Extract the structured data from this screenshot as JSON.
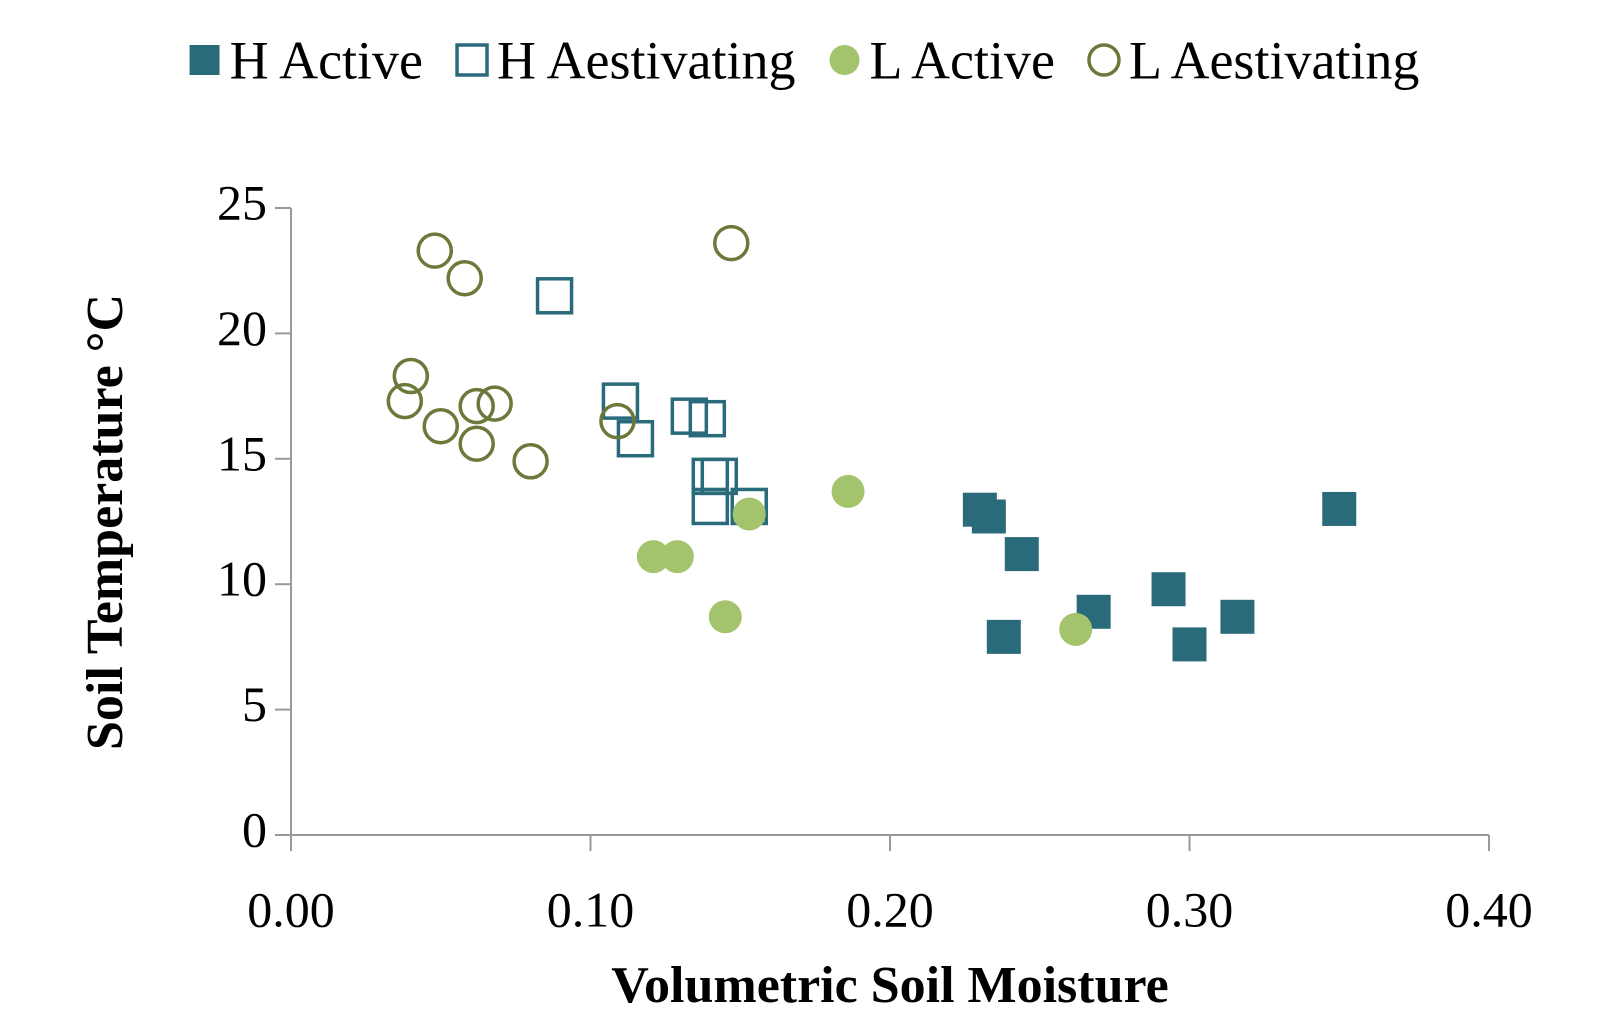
{
  "chart_data": {
    "type": "scatter",
    "xlabel": "Volumetric Soil Moisture",
    "ylabel": "Soil Temperature °C",
    "xlim": [
      0,
      0.4
    ],
    "xticks": [
      {
        "value": 0,
        "label": "0.00"
      },
      {
        "value": 0.1,
        "label": "0.10"
      },
      {
        "value": 0.2,
        "label": "0.20"
      },
      {
        "value": 0.3,
        "label": "0.30"
      },
      {
        "value": 0.4,
        "label": "0.40"
      }
    ],
    "ylim": [
      0,
      25
    ],
    "yticks": [
      0,
      5,
      10,
      15,
      20,
      25
    ],
    "grid": false,
    "legend": "top",
    "series": [
      {
        "name": "H Active",
        "color": "#2a6b7b",
        "marker": "square",
        "filled": true,
        "x": [
          0.23,
          0.233,
          0.244,
          0.238,
          0.268,
          0.293,
          0.3,
          0.316,
          0.35
        ],
        "values": [
          12.97,
          12.7,
          11.2,
          7.9,
          8.9,
          9.8,
          7.6,
          8.7,
          13.0
        ]
      },
      {
        "name": "H Aestivating",
        "color": "#2a6b7b",
        "marker": "square",
        "filled": false,
        "x": [
          0.088,
          0.11,
          0.115,
          0.133,
          0.139,
          0.14,
          0.143,
          0.14,
          0.153
        ],
        "values": [
          21.5,
          17.3,
          15.8,
          16.7,
          16.6,
          14.3,
          14.3,
          13.1,
          13.1
        ]
      },
      {
        "name": "L Active",
        "color": "#a3c46c",
        "marker": "circle",
        "filled": true,
        "x": [
          0.186,
          0.153,
          0.121,
          0.129,
          0.145,
          0.262
        ],
        "values": [
          13.7,
          12.8,
          11.1,
          11.1,
          8.7,
          8.2
        ]
      },
      {
        "name": "L Aestivating",
        "color": "#6b7a3a",
        "marker": "circle",
        "filled": false,
        "x": [
          0.048,
          0.058,
          0.147,
          0.04,
          0.038,
          0.05,
          0.062,
          0.068,
          0.062,
          0.08,
          0.109
        ],
        "values": [
          23.3,
          22.2,
          23.6,
          18.3,
          17.3,
          16.3,
          17.1,
          17.2,
          15.6,
          14.9,
          16.5
        ]
      }
    ]
  }
}
